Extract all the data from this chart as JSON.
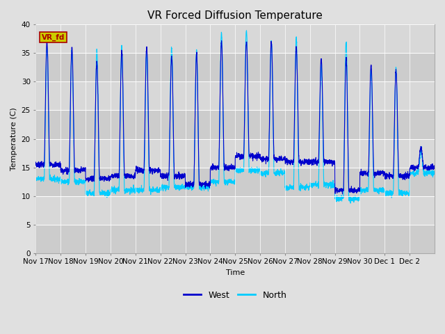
{
  "title": "VR Forced Diffusion Temperature",
  "xlabel": "Time",
  "ylabel": "Temperature (C)",
  "ylim": [
    0,
    40
  ],
  "bg_color": "#e0e0e0",
  "plot_bg_color": "#d8d8d8",
  "west_color": "#0000cc",
  "north_color": "#00ccff",
  "label_text": "VR_fd",
  "label_bg": "#cccc00",
  "label_fg": "#aa0000",
  "xtick_labels": [
    "Nov 17",
    "Nov 18",
    "Nov 19",
    "Nov 20",
    "Nov 21",
    "Nov 22",
    "Nov 23",
    "Nov 24",
    "Nov 25",
    "Nov 26",
    "Nov 27",
    "Nov 28",
    "Nov 29",
    "Nov 30",
    "Dec 1",
    "Dec 2"
  ],
  "legend_west": "West",
  "legend_north": "North",
  "title_fontsize": 11,
  "axis_fontsize": 8,
  "tick_fontsize": 7.5,
  "n_days": 16,
  "west_min": [
    15.5,
    14.5,
    13.0,
    13.5,
    14.5,
    13.5,
    12.0,
    15.0,
    17.0,
    16.5,
    16.0,
    16.0,
    11.0,
    14.0,
    13.5,
    15.0
  ],
  "west_max": [
    37.0,
    36.0,
    33.5,
    35.5,
    36.0,
    34.5,
    35.0,
    37.0,
    37.0,
    37.0,
    36.0,
    34.0,
    34.0,
    33.0,
    32.0,
    18.5
  ],
  "north_min": [
    13.0,
    12.5,
    10.5,
    11.0,
    11.0,
    11.5,
    11.5,
    12.5,
    14.5,
    14.0,
    11.5,
    12.0,
    9.5,
    11.0,
    10.5,
    14.0
  ],
  "north_max": [
    36.0,
    35.5,
    35.5,
    36.0,
    35.5,
    36.0,
    35.5,
    38.5,
    39.0,
    37.0,
    37.5,
    33.0,
    37.0,
    32.0,
    32.5,
    18.0
  ]
}
